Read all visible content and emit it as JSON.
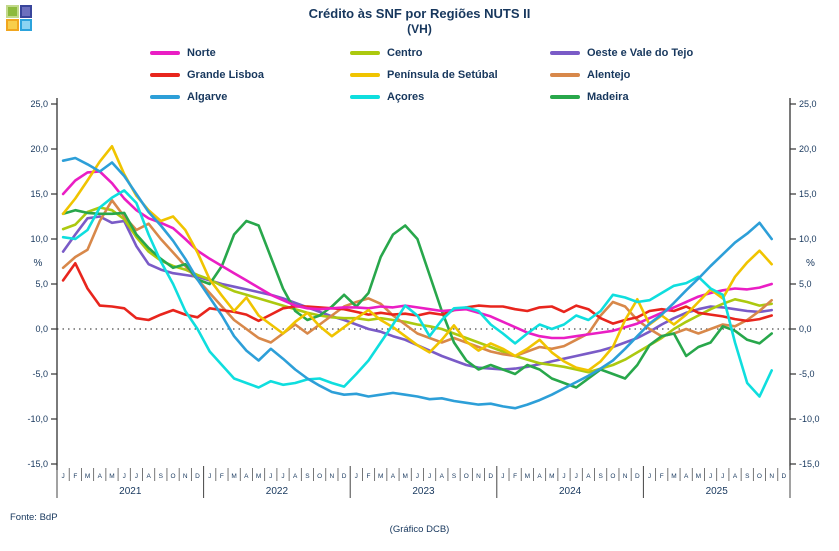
{
  "header": {
    "title": "Crédito às SNF por Regiões NUTS II",
    "subtitle": "(VH)"
  },
  "logo": {
    "name": "quad-squares-logo",
    "squares": [
      {
        "outer": "#C2D98A",
        "inner": "#8DBA3D"
      },
      {
        "outer": "#39459B",
        "inner": "#6C6FBE"
      },
      {
        "outer": "#F1A61F",
        "inner": "#F8CE4B"
      },
      {
        "outer": "#2BA3DC",
        "inner": "#8AD4F2"
      }
    ]
  },
  "footer": {
    "source": "Fonte: BdP",
    "caption": "(Gráfico DCB)"
  },
  "chart_data": {
    "type": "line",
    "title": "Crédito às SNF por Regiões NUTS II (VH)",
    "ylabel_left": "%",
    "ylabel_right": "%",
    "ylim": [
      -15,
      25
    ],
    "ytick_step": 5,
    "ytick_labels": [
      "25,0",
      "20,0",
      "15,0",
      "10,0",
      "5,0",
      "0,0",
      "-5,0",
      "-10,0",
      "-15,0"
    ],
    "zero_line_style": "dotted",
    "grid": false,
    "legend_position": "top",
    "x_unit": "month",
    "month_letters": [
      "J",
      "F",
      "M",
      "A",
      "M",
      "J",
      "J",
      "A",
      "S",
      "O",
      "N",
      "D"
    ],
    "years": [
      "2021",
      "2022",
      "2023",
      "2024",
      "2025"
    ],
    "x_start": "Jan 2021",
    "x_end": "Nov 2025",
    "text_color": "#17375D",
    "draw_order": [
      "Oeste e Vale do Tejo",
      "Centro",
      "Alentejo",
      "Madeira",
      "Grande Lisboa",
      "Norte",
      "Península de Setúbal",
      "Açores",
      "Algarve"
    ],
    "series": [
      {
        "name": "Norte",
        "color": "#EA1EC4",
        "values": [
          15.0,
          16.5,
          17.4,
          17.5,
          16.2,
          14.5,
          13.2,
          12.3,
          11.8,
          11.2,
          10.0,
          8.7,
          7.8,
          7.0,
          6.2,
          5.4,
          4.6,
          3.8,
          3.2,
          2.6,
          2.3,
          2.2,
          2.3,
          2.4,
          2.4,
          2.3,
          2.5,
          2.4,
          2.6,
          2.4,
          2.2,
          2.0,
          2.1,
          2.2,
          1.8,
          1.4,
          0.8,
          0.2,
          -0.4,
          -0.8,
          -1.0,
          -1.0,
          -0.8,
          -0.6,
          -0.4,
          -0.2,
          0.2,
          0.6,
          1.2,
          1.8,
          2.4,
          3.0,
          3.6,
          4.0,
          4.3,
          4.5,
          4.4,
          4.6,
          5.0
        ]
      },
      {
        "name": "Centro",
        "color": "#ACC90F",
        "values": [
          11.1,
          11.6,
          13.0,
          13.5,
          13.2,
          12.2,
          10.2,
          8.6,
          7.6,
          7.0,
          6.6,
          6.0,
          5.5,
          4.8,
          4.2,
          3.8,
          3.4,
          3.0,
          2.6,
          2.2,
          1.8,
          1.5,
          1.3,
          1.2,
          1.2,
          1.0,
          1.2,
          1.0,
          0.8,
          0.5,
          0.3,
          0.0,
          -0.5,
          -1.0,
          -1.5,
          -2.0,
          -2.5,
          -3.0,
          -3.4,
          -3.8,
          -4.0,
          -4.2,
          -4.5,
          -4.8,
          -4.4,
          -4.0,
          -3.4,
          -2.6,
          -1.8,
          -1.0,
          0.0,
          0.8,
          1.5,
          2.2,
          2.8,
          3.3,
          3.0,
          2.6,
          2.8
        ]
      },
      {
        "name": "Oeste e Vale do Tejo",
        "color": "#7A5BC7",
        "values": [
          8.6,
          10.5,
          12.3,
          12.5,
          11.8,
          12.0,
          9.2,
          7.2,
          6.6,
          6.2,
          6.0,
          5.8,
          5.4,
          5.0,
          4.7,
          4.4,
          4.1,
          3.8,
          3.4,
          2.9,
          2.4,
          1.9,
          1.4,
          1.0,
          0.5,
          0.0,
          -0.3,
          -0.8,
          -1.2,
          -1.8,
          -2.4,
          -3.0,
          -3.5,
          -4.0,
          -4.3,
          -4.4,
          -4.5,
          -4.4,
          -4.2,
          -3.9,
          -3.6,
          -3.3,
          -3.0,
          -2.7,
          -2.4,
          -2.0,
          -1.5,
          -1.0,
          -0.3,
          0.5,
          1.2,
          1.8,
          2.2,
          2.5,
          2.4,
          2.2,
          2.0,
          1.9,
          2.1
        ]
      },
      {
        "name": "Grande Lisboa",
        "color": "#E8251D",
        "values": [
          5.4,
          7.3,
          4.5,
          2.6,
          2.5,
          2.3,
          1.2,
          1.0,
          1.6,
          2.1,
          1.6,
          1.3,
          2.3,
          2.1,
          1.9,
          1.6,
          0.9,
          1.6,
          2.3,
          2.5,
          2.5,
          2.4,
          2.3,
          2.2,
          1.9,
          1.6,
          1.8,
          1.6,
          1.7,
          1.5,
          1.8,
          1.6,
          2.1,
          2.4,
          2.6,
          2.5,
          2.5,
          2.2,
          2.0,
          2.4,
          2.5,
          1.9,
          2.6,
          2.2,
          1.2,
          0.6,
          1.0,
          1.3,
          2.0,
          2.2,
          2.0,
          2.5,
          1.8,
          1.6,
          1.4,
          1.1,
          0.9,
          1.1,
          1.5
        ]
      },
      {
        "name": "Península de Setúbal",
        "color": "#F0C400",
        "values": [
          12.8,
          14.5,
          16.5,
          18.6,
          20.3,
          17.2,
          14.8,
          13.2,
          12.0,
          12.5,
          11.0,
          8.5,
          5.5,
          3.7,
          2.0,
          3.5,
          1.5,
          0.5,
          -0.5,
          0.8,
          1.8,
          0.3,
          -0.8,
          0.2,
          1.2,
          2.1,
          1.0,
          0.2,
          -0.8,
          -1.8,
          -2.6,
          -1.2,
          0.4,
          -1.4,
          -2.4,
          -1.6,
          -2.2,
          -3.0,
          -2.2,
          -1.2,
          -2.6,
          -3.6,
          -4.3,
          -4.6,
          -3.6,
          -2.0,
          1.0,
          3.3,
          0.5,
          1.5,
          0.5,
          1.6,
          3.0,
          4.4,
          3.4,
          5.8,
          7.4,
          8.7,
          7.2
        ]
      },
      {
        "name": "Alentejo",
        "color": "#D8884A",
        "values": [
          6.8,
          8.0,
          8.8,
          12.0,
          14.3,
          12.5,
          11.0,
          11.7,
          10.0,
          8.5,
          7.0,
          5.5,
          4.0,
          2.5,
          1.0,
          0.0,
          -1.0,
          -1.5,
          -0.5,
          0.5,
          -0.5,
          0.5,
          1.5,
          2.5,
          3.0,
          3.4,
          2.8,
          1.5,
          0.5,
          -0.5,
          -1.0,
          -1.5,
          -1.0,
          -1.5,
          -2.0,
          -2.5,
          -2.8,
          -3.0,
          -2.5,
          -2.0,
          -2.2,
          -1.9,
          -1.2,
          -0.5,
          1.5,
          3.0,
          2.5,
          1.0,
          0.0,
          -0.8,
          -0.5,
          0.0,
          -0.5,
          0.0,
          0.5,
          0.3,
          1.0,
          2.0,
          3.2
        ]
      },
      {
        "name": "Algarve",
        "color": "#2D9FD8",
        "values": [
          18.7,
          19.0,
          18.3,
          17.5,
          18.5,
          17.0,
          15.0,
          13.0,
          11.5,
          9.8,
          7.8,
          5.5,
          3.5,
          1.5,
          -0.8,
          -2.4,
          -3.5,
          -2.2,
          -3.3,
          -4.5,
          -5.5,
          -6.3,
          -7.0,
          -7.3,
          -7.2,
          -7.5,
          -7.3,
          -7.1,
          -7.3,
          -7.5,
          -7.8,
          -7.7,
          -8.0,
          -8.2,
          -8.4,
          -8.3,
          -8.6,
          -8.8,
          -8.4,
          -7.9,
          -7.3,
          -6.6,
          -5.9,
          -5.2,
          -4.4,
          -3.5,
          -2.2,
          -0.8,
          0.6,
          1.6,
          2.9,
          4.3,
          5.6,
          7.0,
          8.3,
          9.6,
          10.6,
          11.8,
          10.0
        ]
      },
      {
        "name": "Açores",
        "color": "#0FDEDE",
        "values": [
          10.2,
          10.0,
          11.0,
          13.5,
          14.6,
          15.4,
          14.0,
          10.5,
          7.5,
          5.0,
          2.0,
          0.0,
          -2.5,
          -4.0,
          -5.5,
          -6.0,
          -6.5,
          -5.8,
          -6.2,
          -6.0,
          -5.6,
          -5.5,
          -6.0,
          -6.4,
          -5.0,
          -3.5,
          -1.5,
          0.5,
          2.6,
          1.5,
          -0.8,
          1.0,
          2.3,
          2.4,
          2.0,
          0.5,
          -0.5,
          -1.6,
          -0.5,
          0.5,
          0.0,
          0.5,
          1.5,
          1.0,
          2.0,
          3.8,
          3.5,
          3.0,
          3.2,
          4.0,
          4.8,
          5.1,
          5.8,
          4.5,
          3.8,
          -1.5,
          -6.0,
          -7.5,
          -4.6
        ]
      },
      {
        "name": "Madeira",
        "color": "#28A74B",
        "values": [
          12.8,
          13.2,
          12.9,
          12.8,
          12.8,
          12.9,
          10.5,
          9.0,
          7.8,
          6.8,
          7.2,
          5.5,
          5.0,
          7.0,
          10.5,
          12.0,
          11.5,
          8.0,
          4.5,
          2.0,
          1.0,
          1.5,
          2.5,
          3.8,
          2.5,
          4.0,
          8.0,
          10.5,
          11.5,
          10.0,
          6.0,
          2.0,
          -1.5,
          -3.5,
          -4.5,
          -4.0,
          -4.5,
          -5.0,
          -4.0,
          -4.5,
          -5.5,
          -6.0,
          -6.5,
          -5.5,
          -4.5,
          -5.0,
          -5.5,
          -4.0,
          -1.8,
          -0.8,
          -0.5,
          -3.0,
          -2.0,
          -1.5,
          0.3,
          -0.2,
          -1.2,
          -1.6,
          -0.5
        ]
      }
    ]
  }
}
